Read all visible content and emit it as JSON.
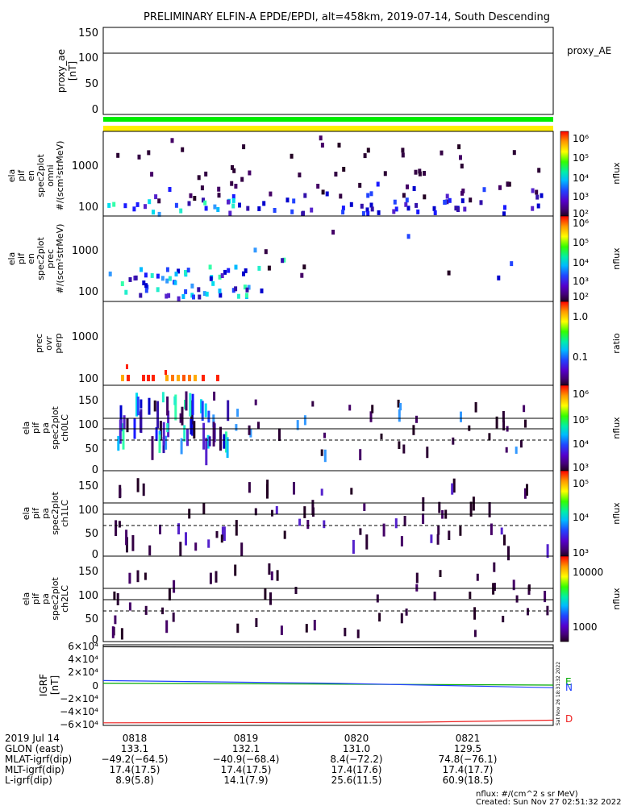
{
  "title": "PRELIMINARY ELFIN-A EPDE/EPDI, alt=458km, 2019-07-14, South Descending",
  "colors": {
    "green_bar": "#00ee00",
    "yellow_bar": "#ffee00",
    "igrf_e": "#00aa00",
    "igrf_n": "#2040ff",
    "igrf_d": "#ee2020"
  },
  "chart_data": [
    {
      "type": "line",
      "id": "proxy_ae",
      "ylabel_lines": [
        "proxy_ae",
        "[nT]"
      ],
      "yticks": [
        0,
        50,
        100,
        150
      ],
      "ylim": [
        -10,
        155
      ],
      "series": [
        {
          "name": "proxy_AE",
          "constant": 107
        }
      ],
      "legend": "proxy_AE"
    },
    {
      "type": "heatmap",
      "id": "omni",
      "ylabel_lines": [
        "ela",
        "pif",
        "en",
        "spec2plot",
        "omni",
        "#/(scm²strMeV)"
      ],
      "yticks": [
        "100",
        "1000"
      ],
      "colorbar": {
        "label": "nflux",
        "ticks": [
          "10⁶",
          "10⁵",
          "10⁴",
          "10³",
          "10²"
        ],
        "palette": "rainbow"
      }
    },
    {
      "type": "heatmap",
      "id": "prec",
      "ylabel_lines": [
        "ela",
        "pif",
        "en",
        "spec2plot",
        "prec",
        "#/(scm²strMeV)"
      ],
      "yticks": [
        "100",
        "1000"
      ],
      "colorbar": {
        "label": "nflux",
        "ticks": [
          "10⁶",
          "10⁵",
          "10⁴",
          "10³",
          "10²"
        ],
        "palette": "rainbow"
      }
    },
    {
      "type": "heatmap",
      "id": "ratio",
      "ylabel_lines": [
        "prec",
        "ovr",
        "perp"
      ],
      "yticks": [
        "100",
        "1000"
      ],
      "colorbar": {
        "label": "ratio",
        "ticks": [
          "1.0",
          "0.1"
        ],
        "palette": "rainbow"
      }
    },
    {
      "type": "heatmap",
      "id": "ch0",
      "ylabel_lines": [
        "ela",
        "pif",
        "pa",
        "spec2plot",
        "ch0LC"
      ],
      "yticks": [
        "0",
        "50",
        "100",
        "150"
      ],
      "ylim": [
        -5,
        180
      ],
      "reference_lines": [
        {
          "value": 113,
          "style": "solid"
        },
        {
          "value": 90,
          "style": "solid"
        },
        {
          "value": 67,
          "style": "dashed"
        }
      ],
      "colorbar": {
        "label": "nflux",
        "ticks": [
          "10⁶",
          "10⁵",
          "10⁴",
          "10³"
        ],
        "palette": "rainbow"
      }
    },
    {
      "type": "heatmap",
      "id": "ch1",
      "ylabel_lines": [
        "ela",
        "pif",
        "pa",
        "spec2plot",
        "ch1LC"
      ],
      "yticks": [
        "0",
        "50",
        "100",
        "150"
      ],
      "ylim": [
        -5,
        180
      ],
      "reference_lines": [
        {
          "value": 113,
          "style": "solid"
        },
        {
          "value": 90,
          "style": "solid"
        },
        {
          "value": 67,
          "style": "dashed"
        }
      ],
      "colorbar": {
        "label": "nflux",
        "ticks": [
          "10⁵",
          "10⁴",
          "10³"
        ],
        "palette": "rainbow"
      }
    },
    {
      "type": "heatmap",
      "id": "ch2",
      "ylabel_lines": [
        "ela",
        "pif",
        "pa",
        "spec2plot",
        "ch2LC"
      ],
      "yticks": [
        "0",
        "50",
        "100",
        "150"
      ],
      "ylim": [
        -5,
        180
      ],
      "reference_lines": [
        {
          "value": 113,
          "style": "solid"
        },
        {
          "value": 90,
          "style": "solid"
        },
        {
          "value": 67,
          "style": "dashed"
        }
      ],
      "colorbar": {
        "label": "nflux",
        "ticks": [
          "10000",
          "1000"
        ],
        "palette": "rainbow"
      }
    },
    {
      "type": "line",
      "id": "igrf",
      "ylabel_lines": [
        "IGRF",
        "[nT]"
      ],
      "yticks": [
        "6×10⁴",
        "4×10⁴",
        "2×10⁴",
        "0",
        "−2×10⁴",
        "−4×10⁴",
        "−6×10⁴"
      ],
      "ylim": [
        -62000,
        62000
      ],
      "series": [
        {
          "name": "E",
          "x": [
            0,
            1
          ],
          "y": [
            3000,
            0
          ]
        },
        {
          "name": "N",
          "x": [
            0,
            0.5,
            1
          ],
          "y": [
            7000,
            3000,
            -4000
          ]
        },
        {
          "name": "D",
          "x": [
            0,
            0.7,
            1
          ],
          "y": [
            -58000,
            -57000,
            -54000
          ]
        },
        {
          "name": "",
          "x": [
            0,
            1
          ],
          "y": [
            59000,
            57000
          ]
        }
      ],
      "side_note": "Sat Nov 26 18:31:32 2022"
    }
  ],
  "time_axis": {
    "date_label": "2019 Jul 14",
    "ticks": [
      "0818",
      "0819",
      "0820",
      "0821"
    ],
    "rows": [
      {
        "label": "GLON (east)",
        "values": [
          "133.1",
          "132.1",
          "131.0",
          "129.5"
        ]
      },
      {
        "label": "MLAT-igrf(dip)",
        "values": [
          "−49.2(−64.5)",
          "−40.9(−68.4)",
          "8.4(−72.2)",
          "74.8(−76.1)"
        ]
      },
      {
        "label": "MLT-igrf(dip)",
        "values": [
          "17.4(17.5)",
          "17.4(17.5)",
          "17.4(17.6)",
          "17.4(17.7)"
        ]
      },
      {
        "label": "L-igrf(dip)",
        "values": [
          "8.9(5.8)",
          "14.1(7.9)",
          "25.6(11.5)",
          "60.9(18.5)"
        ]
      }
    ]
  },
  "footer": {
    "units": "nflux: #/(cm^2 s sr MeV)",
    "created": "Created: Sun Nov 27 02:51:32 2022"
  }
}
